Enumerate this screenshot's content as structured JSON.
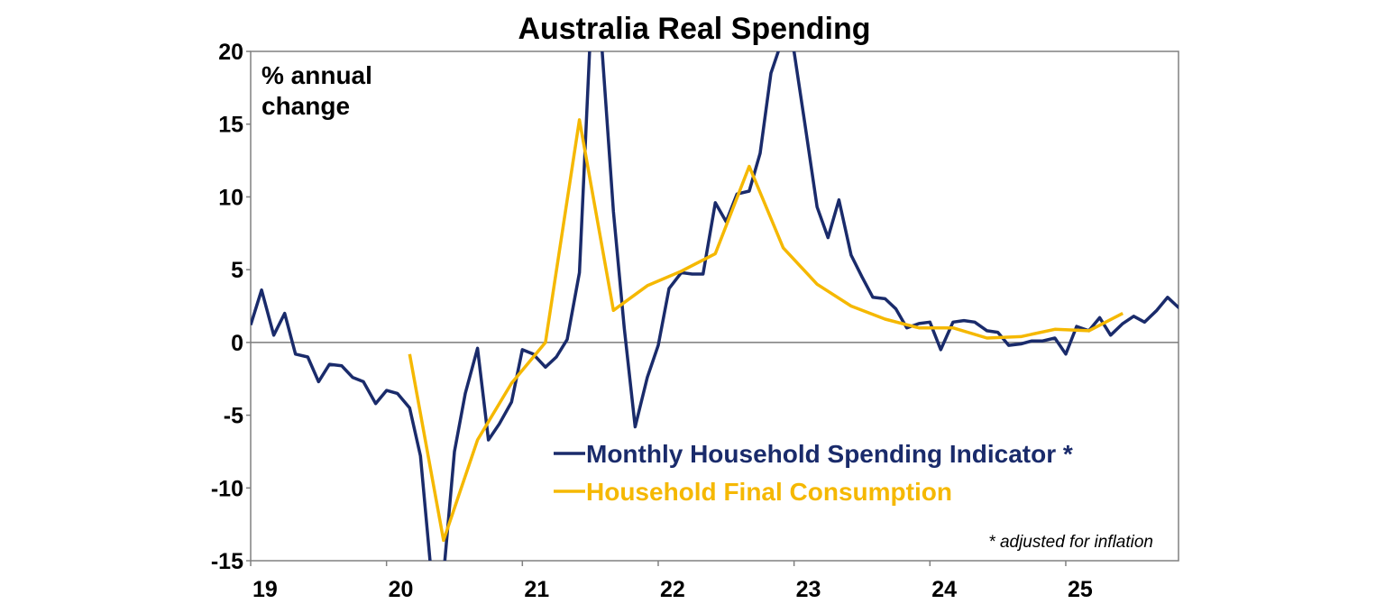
{
  "chart_data": {
    "type": "line",
    "title": "Australia Real Spending",
    "unit_label_lines": [
      "% annual",
      "change"
    ],
    "note": "* adjusted for inflation",
    "xlabel": "",
    "ylabel": "",
    "x_tick_labels": [
      "19",
      "20",
      "21",
      "22",
      "23",
      "24",
      "25"
    ],
    "x_tick_values": [
      2019,
      2020,
      2021,
      2022,
      2023,
      2024,
      2025
    ],
    "xlim": [
      2019.0,
      2025.83
    ],
    "ylim": [
      -15,
      20
    ],
    "y_tick_values": [
      -15,
      -10,
      -5,
      0,
      5,
      10,
      15,
      20
    ],
    "y_tick_labels": [
      "-15",
      "-10",
      "-5",
      "0",
      "5",
      "10",
      "15",
      "20"
    ],
    "grid": false,
    "legend_placement": "bottom-right",
    "series": [
      {
        "name": "Monthly Household Spending Indicator *",
        "color": "#1a2b6b",
        "points": [
          [
            2019.0,
            1.2
          ],
          [
            2019.08,
            3.6
          ],
          [
            2019.17,
            0.5
          ],
          [
            2019.25,
            2.0
          ],
          [
            2019.33,
            -0.8
          ],
          [
            2019.42,
            -1.0
          ],
          [
            2019.5,
            -2.7
          ],
          [
            2019.58,
            -1.5
          ],
          [
            2019.67,
            -1.6
          ],
          [
            2019.75,
            -2.4
          ],
          [
            2019.83,
            -2.7
          ],
          [
            2019.92,
            -4.2
          ],
          [
            2020.0,
            -3.3
          ],
          [
            2020.08,
            -3.5
          ],
          [
            2020.17,
            -4.5
          ],
          [
            2020.25,
            -7.8
          ],
          [
            2020.33,
            -16.0
          ],
          [
            2020.42,
            -16.0
          ],
          [
            2020.5,
            -7.5
          ],
          [
            2020.58,
            -3.5
          ],
          [
            2020.67,
            -0.4
          ],
          [
            2020.75,
            -6.7
          ],
          [
            2020.83,
            -5.6
          ],
          [
            2020.92,
            -4.1
          ],
          [
            2021.0,
            -0.5
          ],
          [
            2021.08,
            -0.8
          ],
          [
            2021.17,
            -1.7
          ],
          [
            2021.25,
            -1.0
          ],
          [
            2021.33,
            0.2
          ],
          [
            2021.42,
            4.8
          ],
          [
            2021.5,
            21.0
          ],
          [
            2021.58,
            21.0
          ],
          [
            2021.67,
            9.0
          ],
          [
            2021.75,
            1.0
          ],
          [
            2021.83,
            -5.8
          ],
          [
            2021.92,
            -2.4
          ],
          [
            2022.0,
            -0.2
          ],
          [
            2022.08,
            3.7
          ],
          [
            2022.17,
            4.8
          ],
          [
            2022.25,
            4.7
          ],
          [
            2022.33,
            4.7
          ],
          [
            2022.42,
            9.6
          ],
          [
            2022.5,
            8.3
          ],
          [
            2022.58,
            10.2
          ],
          [
            2022.67,
            10.4
          ],
          [
            2022.75,
            13.0
          ],
          [
            2022.83,
            18.5
          ],
          [
            2022.92,
            21.0
          ],
          [
            2023.0,
            20.0
          ],
          [
            2023.08,
            15.0
          ],
          [
            2023.17,
            9.3
          ],
          [
            2023.25,
            7.2
          ],
          [
            2023.33,
            9.8
          ],
          [
            2023.42,
            6.0
          ],
          [
            2023.5,
            4.5
          ],
          [
            2023.58,
            3.1
          ],
          [
            2023.67,
            3.0
          ],
          [
            2023.75,
            2.3
          ],
          [
            2023.83,
            1.0
          ],
          [
            2023.92,
            1.3
          ],
          [
            2024.0,
            1.4
          ],
          [
            2024.08,
            -0.5
          ],
          [
            2024.17,
            1.4
          ],
          [
            2024.25,
            1.5
          ],
          [
            2024.33,
            1.4
          ],
          [
            2024.42,
            0.8
          ],
          [
            2024.5,
            0.7
          ],
          [
            2024.58,
            -0.2
          ],
          [
            2024.67,
            -0.1
          ],
          [
            2024.75,
            0.1
          ],
          [
            2024.83,
            0.1
          ],
          [
            2024.92,
            0.3
          ],
          [
            2025.0,
            -0.8
          ],
          [
            2025.08,
            1.1
          ],
          [
            2025.17,
            0.8
          ],
          [
            2025.25,
            1.7
          ],
          [
            2025.33,
            0.5
          ],
          [
            2025.42,
            1.3
          ],
          [
            2025.5,
            1.8
          ],
          [
            2025.58,
            1.4
          ],
          [
            2025.67,
            2.2
          ],
          [
            2025.75,
            3.1
          ],
          [
            2025.83,
            2.4
          ],
          [
            2025.92,
            2.0
          ]
        ]
      },
      {
        "name": "Household Final Consumption",
        "color": "#f5b800",
        "points": [
          [
            2020.17,
            -0.8
          ],
          [
            2020.42,
            -13.6
          ],
          [
            2020.67,
            -6.7
          ],
          [
            2020.92,
            -2.8
          ],
          [
            2021.17,
            0.0
          ],
          [
            2021.42,
            15.3
          ],
          [
            2021.67,
            2.2
          ],
          [
            2021.92,
            3.9
          ],
          [
            2022.17,
            4.9
          ],
          [
            2022.42,
            6.1
          ],
          [
            2022.67,
            12.1
          ],
          [
            2022.92,
            6.5
          ],
          [
            2023.17,
            4.0
          ],
          [
            2023.42,
            2.5
          ],
          [
            2023.67,
            1.6
          ],
          [
            2023.92,
            1.0
          ],
          [
            2024.17,
            1.0
          ],
          [
            2024.42,
            0.3
          ],
          [
            2024.67,
            0.4
          ],
          [
            2024.92,
            0.9
          ],
          [
            2025.17,
            0.8
          ],
          [
            2025.42,
            2.0
          ]
        ]
      }
    ]
  }
}
